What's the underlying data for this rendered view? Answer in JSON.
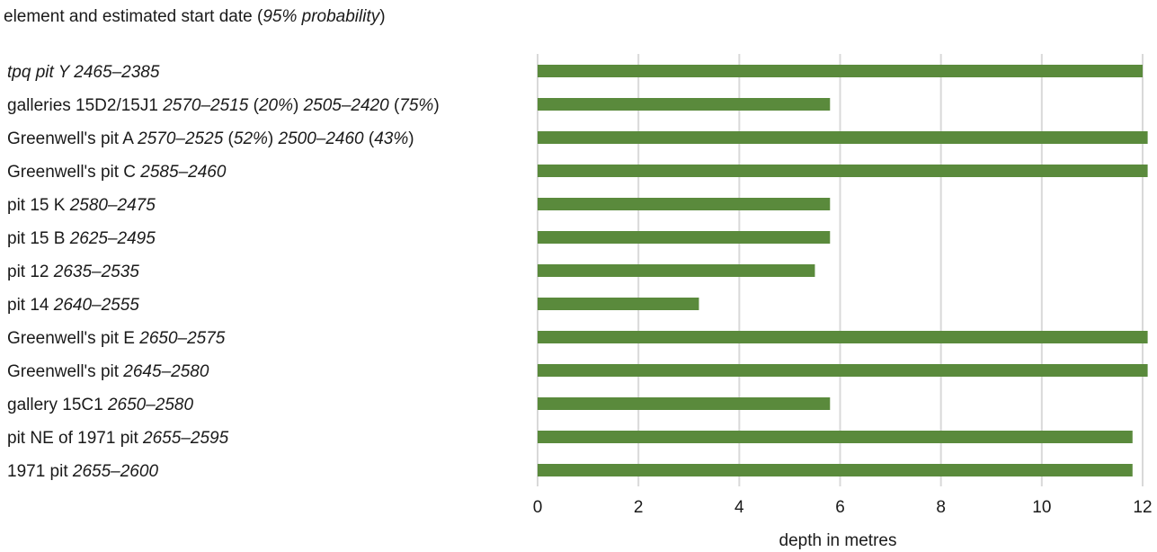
{
  "chart_data": {
    "type": "bar",
    "orientation": "horizontal",
    "title": {
      "segments": [
        {
          "text": "element and estimated start date (",
          "italic": false
        },
        {
          "text": "95% probability",
          "italic": true
        },
        {
          "text": ")",
          "italic": false
        }
      ]
    },
    "xlabel": "depth in metres",
    "ylabel": "",
    "xlim": [
      0,
      12
    ],
    "xticks": [
      "0",
      "2",
      "4",
      "6",
      "8",
      "10",
      "12"
    ],
    "grid": "vertical",
    "legend": "none",
    "bar_color": "#5a8a3c",
    "grid_color": "#d9d9d9",
    "categories": [
      {
        "segments": [
          {
            "text": "tpq pit Y 2465–2385",
            "italic": true
          }
        ]
      },
      {
        "segments": [
          {
            "text": "galleries 15D2/15J1 ",
            "italic": false
          },
          {
            "text": "2570–2515",
            "italic": true
          },
          {
            "text": " (",
            "italic": false
          },
          {
            "text": "20%",
            "italic": true
          },
          {
            "text": ") ",
            "italic": false
          },
          {
            "text": "2505–2420",
            "italic": true
          },
          {
            "text": " (",
            "italic": false
          },
          {
            "text": "75%",
            "italic": true
          },
          {
            "text": ")",
            "italic": false
          }
        ]
      },
      {
        "segments": [
          {
            "text": "Greenwell's pit A ",
            "italic": false
          },
          {
            "text": "2570–2525",
            "italic": true
          },
          {
            "text": " (",
            "italic": false
          },
          {
            "text": "52%",
            "italic": true
          },
          {
            "text": ") ",
            "italic": false
          },
          {
            "text": "2500–2460",
            "italic": true
          },
          {
            "text": " (",
            "italic": false
          },
          {
            "text": "43%",
            "italic": true
          },
          {
            "text": ")",
            "italic": false
          }
        ]
      },
      {
        "segments": [
          {
            "text": "Greenwell's pit C ",
            "italic": false
          },
          {
            "text": "2585–2460",
            "italic": true
          }
        ]
      },
      {
        "segments": [
          {
            "text": "pit 15 K ",
            "italic": false
          },
          {
            "text": "2580–2475",
            "italic": true
          }
        ]
      },
      {
        "segments": [
          {
            "text": "pit 15 B ",
            "italic": false
          },
          {
            "text": "2625–2495",
            "italic": true
          }
        ]
      },
      {
        "segments": [
          {
            "text": "pit 12 ",
            "italic": false
          },
          {
            "text": "2635–2535",
            "italic": true
          }
        ]
      },
      {
        "segments": [
          {
            "text": "pit 14 ",
            "italic": false
          },
          {
            "text": "2640–2555",
            "italic": true
          }
        ]
      },
      {
        "segments": [
          {
            "text": "Greenwell's pit E ",
            "italic": false
          },
          {
            "text": "2650–2575",
            "italic": true
          }
        ]
      },
      {
        "segments": [
          {
            "text": "Greenwell's pit ",
            "italic": false
          },
          {
            "text": "2645–2580",
            "italic": true
          }
        ]
      },
      {
        "segments": [
          {
            "text": "gallery 15C1 ",
            "italic": false
          },
          {
            "text": "2650–2580",
            "italic": true
          }
        ]
      },
      {
        "segments": [
          {
            "text": "pit NE of 1971 pit ",
            "italic": false
          },
          {
            "text": "2655–2595",
            "italic": true
          }
        ]
      },
      {
        "segments": [
          {
            "text": "1971 pit ",
            "italic": false
          },
          {
            "text": "2655–2600",
            "italic": true
          }
        ]
      }
    ],
    "values": [
      12,
      5.8,
      12.1,
      12.1,
      5.8,
      5.8,
      5.5,
      3.2,
      12.1,
      12.1,
      5.8,
      11.8,
      11.8
    ]
  }
}
